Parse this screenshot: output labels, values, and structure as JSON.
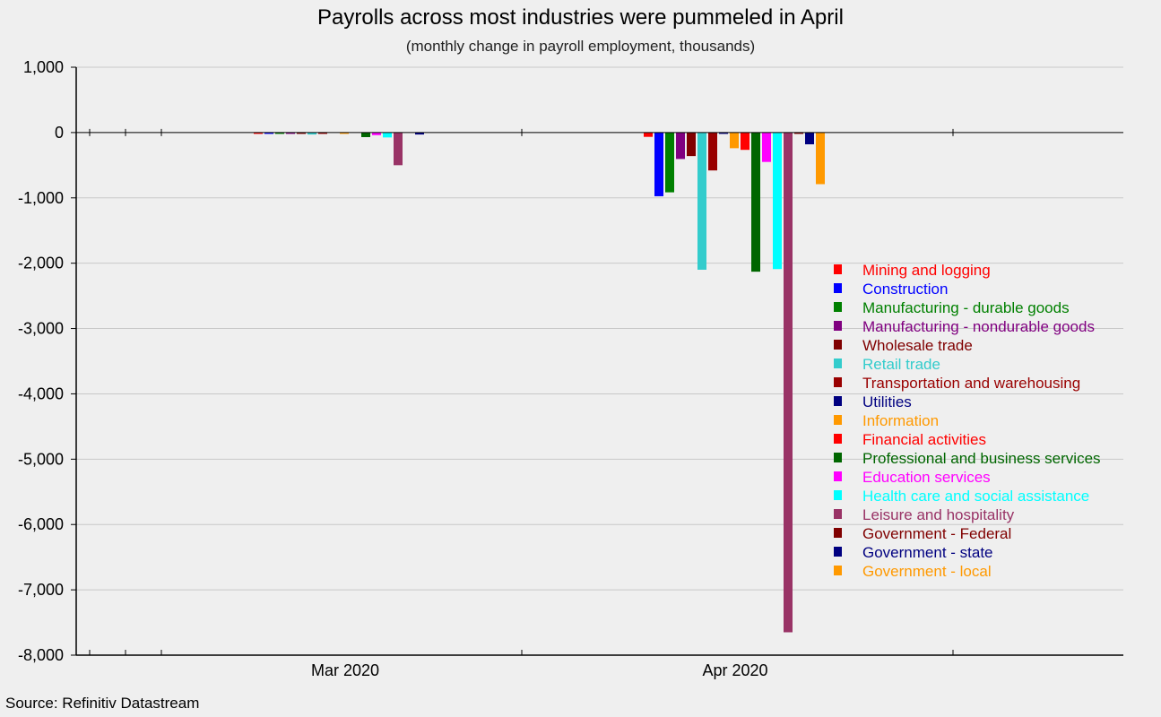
{
  "chart_data": {
    "type": "bar",
    "title": "Payrolls across most industries were pummeled in April",
    "subtitle": "(monthly change in payroll employment, thousands)",
    "source": "Source: Refinitiv Datastream",
    "xlabel": "",
    "ylabel": "",
    "ylim": [
      -8000,
      1000
    ],
    "yticks": [
      1000,
      0,
      -1000,
      -2000,
      -3000,
      -4000,
      -5000,
      -6000,
      -7000,
      -8000
    ],
    "ytick_labels": [
      "1,000",
      "0",
      "-1,000",
      "-2,000",
      "-3,000",
      "-4,000",
      "-5,000",
      "-6,000",
      "-7,000",
      "-8,000"
    ],
    "grid": true,
    "legend_position": "right",
    "categories": [
      "Mar 2020",
      "Apr 2020"
    ],
    "series": [
      {
        "name": "Mining and logging",
        "color": "#ff0000",
        "values": [
          -3,
          -66
        ]
      },
      {
        "name": "Construction",
        "color": "#0000ff",
        "values": [
          -20,
          -975
        ]
      },
      {
        "name": "Manufacturing - durable goods",
        "color": "#008000",
        "values": [
          -18,
          -915
        ]
      },
      {
        "name": "Manufacturing - nondurable goods",
        "color": "#800080",
        "values": [
          -3,
          -405
        ]
      },
      {
        "name": "Wholesale trade",
        "color": "#800000",
        "values": [
          -5,
          -360
        ]
      },
      {
        "name": "Retail trade",
        "color": "#33cccc",
        "values": [
          -30,
          -2100
        ]
      },
      {
        "name": "Transportation and warehousing",
        "color": "#990000",
        "values": [
          -7,
          -580
        ]
      },
      {
        "name": "Utilities",
        "color": "#000080",
        "values": [
          0,
          -5
        ]
      },
      {
        "name": "Information",
        "color": "#ff9900",
        "values": [
          -4,
          -240
        ]
      },
      {
        "name": "Financial activities",
        "color": "#ff0000",
        "values": [
          0,
          -265
        ]
      },
      {
        "name": "Professional and business services",
        "color": "#006600",
        "values": [
          -70,
          -2130
        ]
      },
      {
        "name": "Education services",
        "color": "#ff00ff",
        "values": [
          -40,
          -450
        ]
      },
      {
        "name": "Health care and social assistance",
        "color": "#00ffff",
        "values": [
          -75,
          -2090
        ]
      },
      {
        "name": "Leisure and hospitality",
        "color": "#993366",
        "values": [
          -500,
          -7650
        ]
      },
      {
        "name": "Government - Federal",
        "color": "#800000",
        "values": [
          0,
          -5
        ]
      },
      {
        "name": "Government - state",
        "color": "#000080",
        "values": [
          -30,
          -180
        ]
      },
      {
        "name": "Government - local",
        "color": "#ff9900",
        "values": [
          0,
          -790
        ]
      }
    ]
  }
}
